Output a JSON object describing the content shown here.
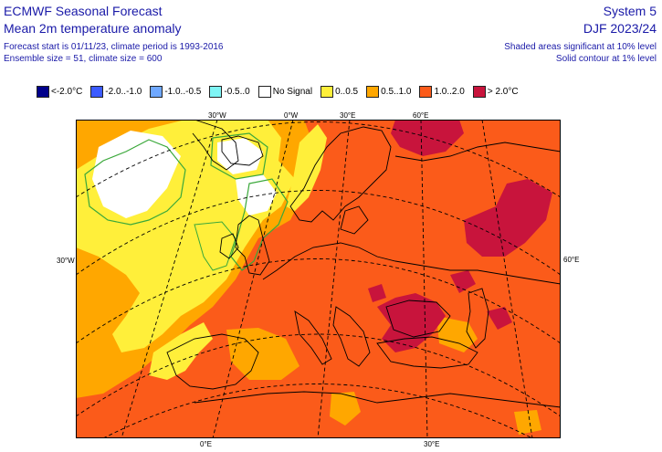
{
  "header": {
    "title": "ECMWF Seasonal Forecast",
    "subtitle": "Mean 2m temperature anomaly",
    "forecast_info": "Forecast start is 01/11/23, climate period is 1993-2016",
    "ensemble_info": "Ensemble size = 51, climate size = 600",
    "system": "System 5",
    "period": "DJF 2023/24",
    "note_shaded": "Shaded areas significant at 10% level",
    "note_contour": "Solid contour at 1% level"
  },
  "legend": [
    {
      "label": "<-2.0°C",
      "color": "#00008b",
      "icon": "swatch-square"
    },
    {
      "label": "-2.0..-1.0",
      "color": "#3b5bff",
      "icon": "swatch-square"
    },
    {
      "label": "-1.0..-0.5",
      "color": "#6fa8ff",
      "icon": "swatch-square"
    },
    {
      "label": "-0.5..0",
      "color": "#7ff5f5",
      "icon": "swatch-square"
    },
    {
      "label": "No Signal",
      "color": "#ffffff",
      "icon": "swatch-square"
    },
    {
      "label": "0..0.5",
      "color": "#ffef3a",
      "icon": "swatch-square"
    },
    {
      "label": "0.5..1.0",
      "color": "#ffa700",
      "icon": "swatch-square"
    },
    {
      "label": "1.0..2.0",
      "color": "#fb5b1a",
      "icon": "swatch-square"
    },
    {
      "label": "> 2.0°C",
      "color": "#c8143c",
      "icon": "swatch-square"
    }
  ],
  "axis_labels": {
    "top": [
      "30°W",
      "0°W",
      "30°E",
      "60°E"
    ],
    "left": "30°W",
    "right": "60°E",
    "bottom": [
      "0°E",
      "30°E"
    ]
  },
  "colors": {
    "text": "#1a1aa8",
    "sig_contour": "#3aa83a",
    "gridline": "#000000",
    "coast": "#000000"
  }
}
